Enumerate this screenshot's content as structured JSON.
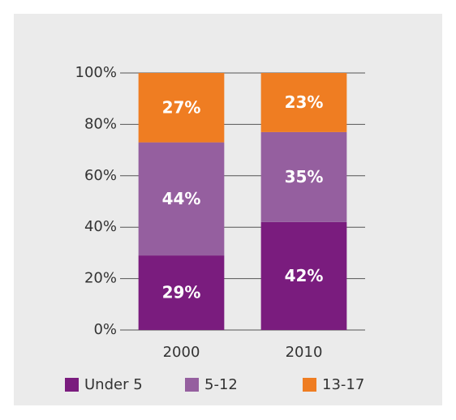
{
  "chart_data": {
    "type": "stacked_bar",
    "categories": [
      "2000",
      "2010"
    ],
    "series": [
      {
        "name": "Under 5",
        "color": "#7a1c7e",
        "values": [
          29,
          42
        ],
        "value_labels": [
          "29%",
          "42%"
        ]
      },
      {
        "name": "5-12",
        "color": "#955f9f",
        "values": [
          44,
          35
        ],
        "value_labels": [
          "44%",
          "35%"
        ]
      },
      {
        "name": "13-17",
        "color": "#ef7d22",
        "values": [
          27,
          23
        ],
        "value_labels": [
          "27%",
          "23%"
        ]
      }
    ],
    "ylim": [
      0,
      100
    ],
    "yticks": [
      {
        "value": 0,
        "label": "0%"
      },
      {
        "value": 20,
        "label": "20%"
      },
      {
        "value": 40,
        "label": "40%"
      },
      {
        "value": 60,
        "label": "60%"
      },
      {
        "value": 80,
        "label": "80%"
      },
      {
        "value": 100,
        "label": "100%"
      }
    ],
    "grid": true,
    "legend": "bottom"
  }
}
